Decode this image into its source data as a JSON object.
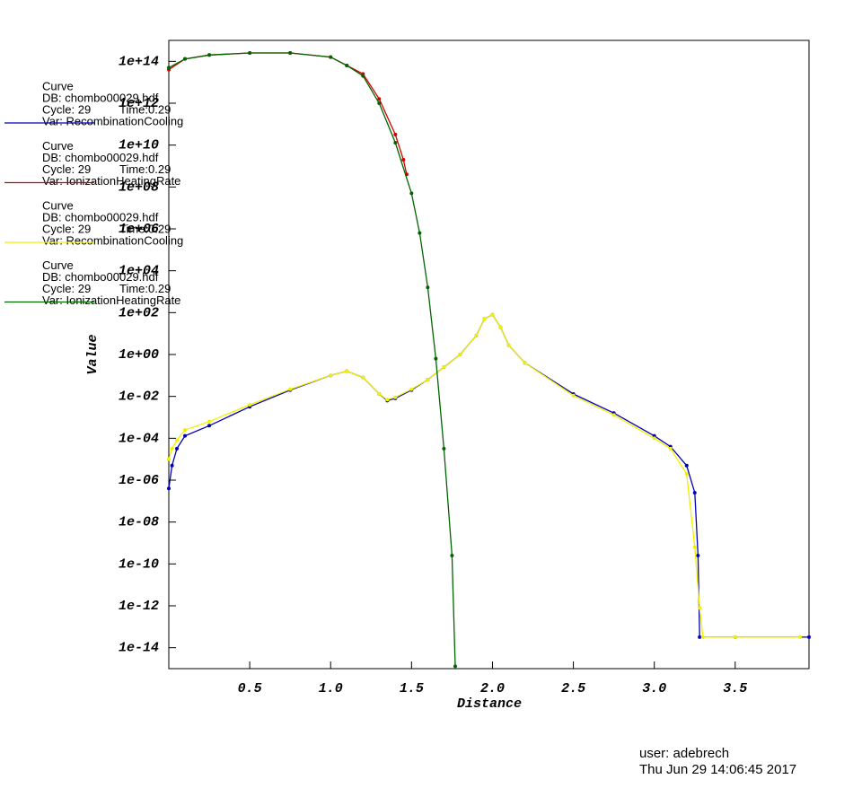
{
  "chart_data": {
    "type": "line",
    "xlabel": "Distance",
    "ylabel": "Value",
    "log_y": true,
    "xlim": [
      0,
      3.956
    ],
    "ylim": [
      1e-15,
      1000000000000000.0
    ],
    "xticks": [
      0.5,
      {
        "value": 1,
        "label": "1.0"
      },
      1.5,
      {
        "value": 2,
        "label": "2.0"
      },
      2.5,
      {
        "value": 3,
        "label": "3.0"
      },
      3.5
    ],
    "yticks": [
      {
        "value": 1e-14,
        "label": "1e-14"
      },
      {
        "value": 1e-12,
        "label": "1e-12"
      },
      {
        "value": 1e-10,
        "label": "1e-10"
      },
      {
        "value": 1e-08,
        "label": "1e-08"
      },
      {
        "value": 1e-06,
        "label": "1e-06"
      },
      {
        "value": 0.0001,
        "label": "1e-04"
      },
      {
        "value": 0.01,
        "label": "1e-02"
      },
      {
        "value": 1,
        "label": "1e+00"
      },
      {
        "value": 100.0,
        "label": "1e+02"
      },
      {
        "value": 10000.0,
        "label": "1e+04"
      },
      {
        "value": 1000000.0,
        "label": "1e+06"
      },
      {
        "value": 100000000.0,
        "label": "1e+08"
      },
      {
        "value": 10000000000.0,
        "label": "1e+10"
      },
      {
        "value": 1000000000000.0,
        "label": "1e+12"
      },
      {
        "value": 100000000000000.0,
        "label": "1e+14"
      }
    ],
    "series": [
      {
        "name": "Var: RecombinationCooling",
        "curve": "Curve",
        "db": "DB: chombo00029.hdf",
        "cycle": "Cycle: 29",
        "time": "Time:0.29",
        "color": "#0000b4",
        "x": [
          0,
          0.02,
          0.05,
          0.1,
          0.25,
          0.5,
          0.75,
          1.0,
          1.1,
          1.2,
          1.3,
          1.35,
          1.4,
          1.5,
          1.6,
          1.7,
          1.8,
          1.9,
          1.95,
          2.0,
          2.05,
          2.1,
          2.2,
          2.5,
          2.75,
          3.0,
          3.1,
          3.2,
          3.25,
          3.27,
          3.28,
          3.5,
          3.956
        ],
        "values": [
          4e-07,
          5e-06,
          3.2e-05,
          0.00013,
          0.0004,
          0.0032,
          0.02,
          0.1,
          0.16,
          0.08,
          0.013,
          0.0063,
          0.008,
          0.02,
          0.063,
          0.25,
          1,
          8,
          50,
          80,
          20,
          2.8,
          0.4,
          0.013,
          0.0016,
          0.00013,
          4e-05,
          5e-06,
          2.5e-07,
          2.5e-10,
          3.2e-14,
          3.2e-14,
          3.2e-14
        ]
      },
      {
        "name": "Var: IonizationHeatingRate",
        "curve": "Curve",
        "db": "DB: chombo00029.hdf",
        "cycle": "Cycle: 29",
        "time": "Time:0.29",
        "color": "#d40000",
        "x": [
          0,
          0.1,
          0.25,
          0.5,
          0.75,
          1.0,
          1.1,
          1.2,
          1.3,
          1.4,
          1.45,
          1.47
        ],
        "values": [
          40000000000000.0,
          130000000000000.0,
          200000000000000.0,
          250000000000000.0,
          250000000000000.0,
          160000000000000.0,
          63000000000000.0,
          25000000000000.0,
          1600000000000.0,
          32000000000.0,
          2000000000.0,
          400000000.0
        ]
      },
      {
        "name": "Var: RecombinationCooling",
        "curve": "Curve",
        "db": "DB: chombo00029.hdf",
        "cycle": "Cycle: 29",
        "time": "Time:0.29",
        "color": "#f0f000",
        "x": [
          0,
          0.02,
          0.05,
          0.1,
          0.25,
          0.5,
          0.75,
          1.0,
          1.1,
          1.2,
          1.3,
          1.35,
          1.4,
          1.5,
          1.6,
          1.7,
          1.8,
          1.9,
          1.95,
          2.0,
          2.05,
          2.1,
          2.2,
          2.5,
          2.75,
          3.0,
          3.1,
          3.2,
          3.25,
          3.28,
          3.3,
          3.5,
          3.9
        ],
        "values": [
          1e-05,
          3.2e-05,
          8e-05,
          0.00025,
          0.00063,
          0.004,
          0.022,
          0.1,
          0.16,
          0.08,
          0.013,
          0.007,
          0.009,
          0.022,
          0.063,
          0.25,
          1,
          8,
          50,
          80,
          20,
          2.8,
          0.4,
          0.011,
          0.0013,
          0.0001,
          3.2e-05,
          2e-06,
          6.3e-10,
          8e-13,
          3.2e-14,
          3.2e-14,
          3.2e-14
        ]
      },
      {
        "name": "Var: IonizationHeatingRate",
        "curve": "Curve",
        "db": "DB: chombo00029.hdf",
        "cycle": "Cycle: 29",
        "time": "Time:0.29",
        "color": "#006400",
        "x": [
          0,
          0.1,
          0.25,
          0.5,
          0.75,
          1.0,
          1.1,
          1.2,
          1.3,
          1.4,
          1.5,
          1.55,
          1.6,
          1.65,
          1.7,
          1.75,
          1.77
        ],
        "values": [
          50000000000000.0,
          130000000000000.0,
          200000000000000.0,
          250000000000000.0,
          250000000000000.0,
          160000000000000.0,
          63000000000000.0,
          20000000000000.0,
          1000000000000.0,
          13000000000.0,
          50000000.0,
          630000.0,
          1600.0,
          0.63,
          3.2e-05,
          2.5e-10,
          1.3e-15
        ]
      }
    ],
    "user": "user: adebrech",
    "timestamp": "Thu Jun 29 14:06:45 2017"
  }
}
